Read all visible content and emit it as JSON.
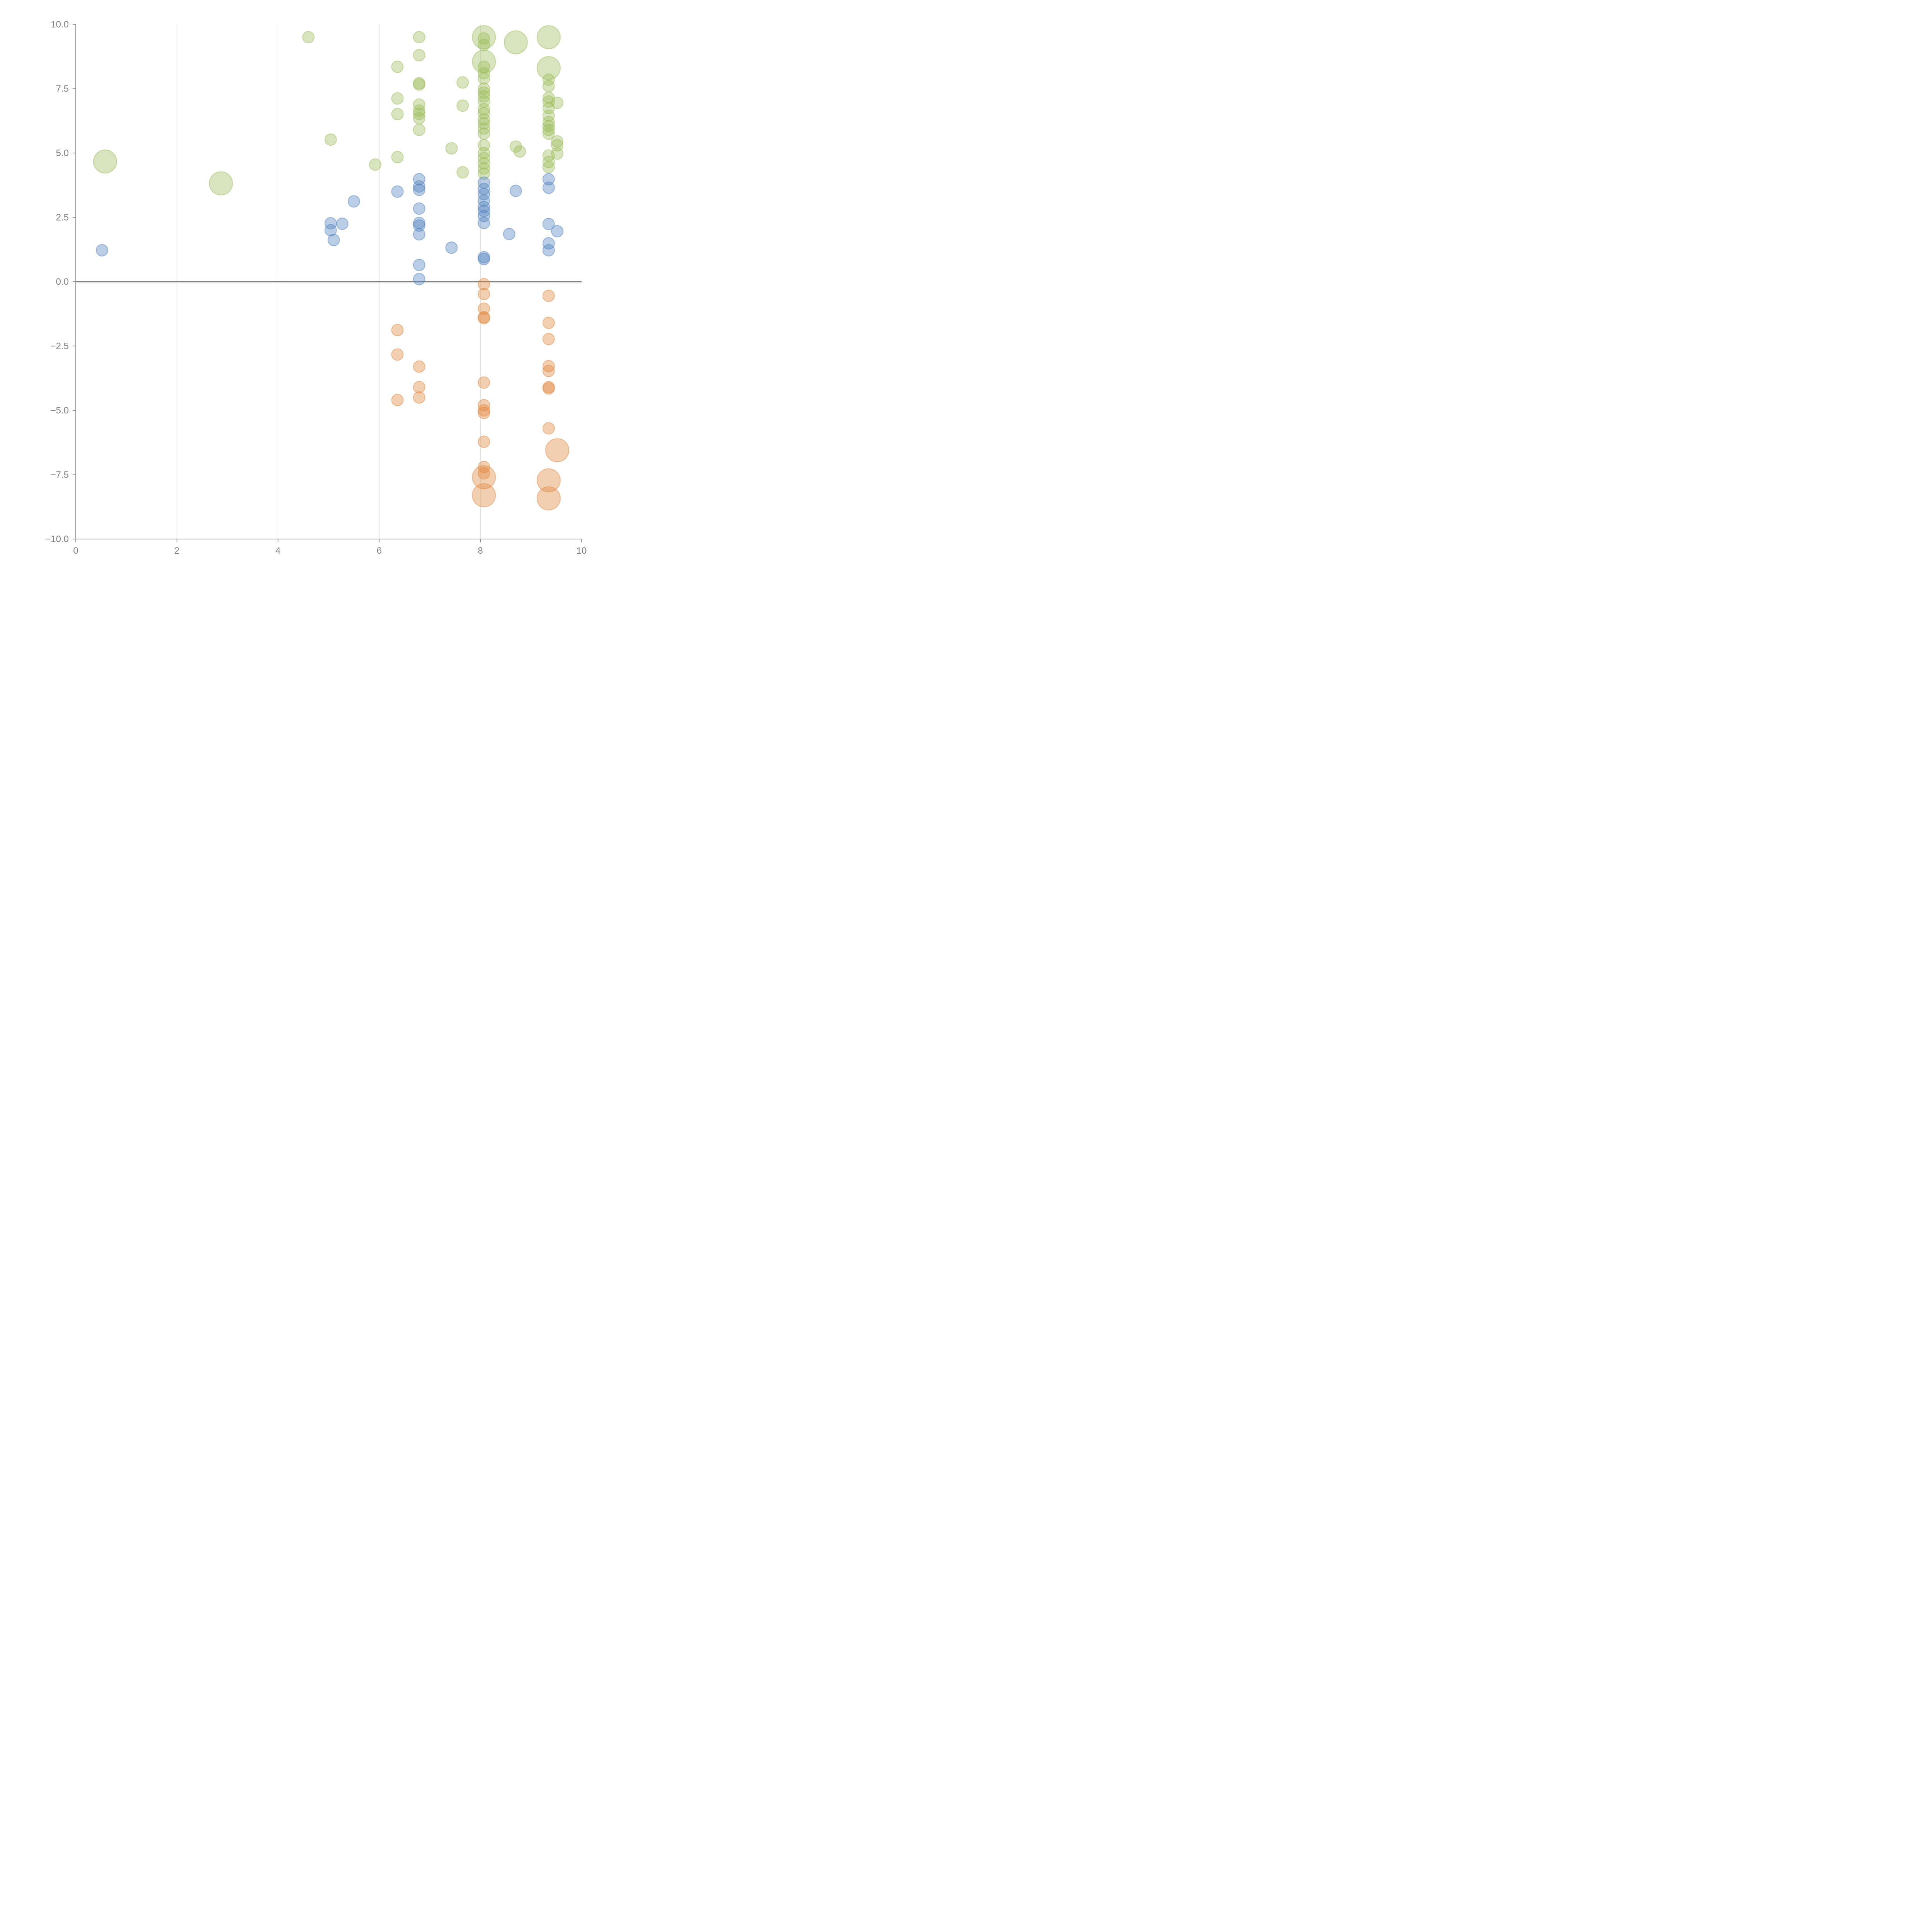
{
  "chart_data": {
    "type": "scatter",
    "title": "",
    "xlabel": "",
    "ylabel": "",
    "xlim": [
      0,
      10
    ],
    "ylim": [
      -10,
      10
    ],
    "xticks": [
      "0",
      "2",
      "4",
      "6",
      "8",
      "10"
    ],
    "yticks": [
      "10.0",
      "7.5",
      "5.0",
      "2.5",
      "0.0",
      "−2.5",
      "−5.0",
      "−7.5",
      "−10.0"
    ],
    "grid": "vertical",
    "zero_line": true,
    "colors": {
      "green": "#9bbb59",
      "blue": "#4f81bd",
      "orange": "#e0883f"
    },
    "series": [
      {
        "name": "green",
        "points": [
          [
            4.6,
            9.5,
            1
          ],
          [
            0.58,
            4.67,
            3
          ],
          [
            2.87,
            3.82,
            3
          ],
          [
            5.04,
            5.52,
            1
          ],
          [
            5.92,
            4.55,
            1
          ],
          [
            6.36,
            8.35,
            1
          ],
          [
            6.36,
            7.12,
            1
          ],
          [
            6.36,
            6.51,
            1
          ],
          [
            6.36,
            4.84,
            1
          ],
          [
            6.79,
            9.5,
            1
          ],
          [
            6.79,
            8.8,
            1
          ],
          [
            6.79,
            7.71,
            1
          ],
          [
            6.79,
            7.66,
            1
          ],
          [
            6.79,
            6.88,
            1
          ],
          [
            6.79,
            6.65,
            1
          ],
          [
            6.79,
            6.52,
            1
          ],
          [
            6.79,
            6.35,
            1
          ],
          [
            6.79,
            5.9,
            1
          ],
          [
            7.43,
            5.18,
            1
          ],
          [
            7.65,
            7.74,
            1
          ],
          [
            7.65,
            6.84,
            1
          ],
          [
            7.65,
            4.25,
            1
          ],
          [
            8.07,
            9.5,
            3
          ],
          [
            8.07,
            9.45,
            1
          ],
          [
            8.07,
            9.2,
            1
          ],
          [
            8.07,
            8.55,
            3
          ],
          [
            8.07,
            8.35,
            1
          ],
          [
            8.07,
            8.1,
            1
          ],
          [
            8.07,
            7.9,
            1
          ],
          [
            8.07,
            7.5,
            1
          ],
          [
            8.07,
            7.35,
            1
          ],
          [
            8.07,
            7.2,
            1
          ],
          [
            8.07,
            7.0,
            1
          ],
          [
            8.07,
            6.7,
            1
          ],
          [
            8.07,
            6.55,
            1
          ],
          [
            8.07,
            6.3,
            1
          ],
          [
            8.07,
            6.15,
            1
          ],
          [
            8.07,
            5.95,
            1
          ],
          [
            8.07,
            5.75,
            1
          ],
          [
            8.07,
            5.3,
            1
          ],
          [
            8.07,
            5.0,
            1
          ],
          [
            8.07,
            4.8,
            1
          ],
          [
            8.07,
            4.6,
            1
          ],
          [
            8.07,
            4.4,
            1
          ],
          [
            8.07,
            4.2,
            1
          ],
          [
            8.7,
            9.3,
            3
          ],
          [
            8.7,
            5.25,
            1
          ],
          [
            8.78,
            5.06,
            1
          ],
          [
            9.35,
            9.5,
            3
          ],
          [
            9.35,
            8.3,
            3
          ],
          [
            9.35,
            7.85,
            1
          ],
          [
            9.35,
            7.6,
            1
          ],
          [
            9.35,
            7.15,
            1
          ],
          [
            9.35,
            7.0,
            1
          ],
          [
            9.35,
            6.75,
            1
          ],
          [
            9.35,
            6.45,
            1
          ],
          [
            9.35,
            6.2,
            1
          ],
          [
            9.35,
            6.05,
            1
          ],
          [
            9.35,
            5.9,
            1
          ],
          [
            9.35,
            5.75,
            1
          ],
          [
            9.35,
            4.9,
            1
          ],
          [
            9.35,
            4.65,
            1
          ],
          [
            9.35,
            4.45,
            1
          ],
          [
            9.52,
            6.95,
            1
          ],
          [
            9.52,
            5.45,
            1
          ],
          [
            9.52,
            5.3,
            1
          ],
          [
            9.52,
            4.98,
            1
          ]
        ]
      },
      {
        "name": "blue",
        "points": [
          [
            0.52,
            1.22,
            1
          ],
          [
            5.04,
            2.27,
            1
          ],
          [
            5.04,
            2.0,
            1
          ],
          [
            5.1,
            1.62,
            1
          ],
          [
            5.27,
            2.25,
            1
          ],
          [
            5.5,
            3.12,
            1
          ],
          [
            6.36,
            3.5,
            1
          ],
          [
            6.79,
            3.98,
            1
          ],
          [
            6.79,
            3.7,
            1
          ],
          [
            6.79,
            3.57,
            1
          ],
          [
            6.79,
            2.84,
            1
          ],
          [
            6.79,
            2.28,
            1
          ],
          [
            6.79,
            2.18,
            1
          ],
          [
            6.79,
            1.84,
            1
          ],
          [
            6.79,
            0.65,
            1
          ],
          [
            6.79,
            0.1,
            1
          ],
          [
            7.43,
            1.32,
            1
          ],
          [
            8.07,
            3.85,
            1
          ],
          [
            8.07,
            3.6,
            1
          ],
          [
            8.07,
            3.4,
            1
          ],
          [
            8.07,
            3.15,
            1
          ],
          [
            8.07,
            2.9,
            1
          ],
          [
            8.07,
            2.75,
            1
          ],
          [
            8.07,
            2.55,
            1
          ],
          [
            8.07,
            2.28,
            1
          ],
          [
            8.07,
            0.95,
            1
          ],
          [
            8.07,
            0.88,
            1
          ],
          [
            8.57,
            1.85,
            1
          ],
          [
            8.7,
            3.53,
            1
          ],
          [
            9.35,
            3.98,
            1
          ],
          [
            9.35,
            3.65,
            1
          ],
          [
            9.35,
            2.24,
            1
          ],
          [
            9.35,
            1.49,
            1
          ],
          [
            9.35,
            1.22,
            1
          ],
          [
            9.52,
            1.96,
            1
          ]
        ]
      },
      {
        "name": "orange",
        "points": [
          [
            6.36,
            -1.88,
            1
          ],
          [
            6.36,
            -2.83,
            1
          ],
          [
            6.36,
            -4.6,
            1
          ],
          [
            6.79,
            -3.3,
            1
          ],
          [
            6.79,
            -4.1,
            1
          ],
          [
            6.79,
            -4.5,
            1
          ],
          [
            8.07,
            -0.1,
            1
          ],
          [
            8.07,
            -0.48,
            1
          ],
          [
            8.07,
            -1.05,
            1
          ],
          [
            8.07,
            -1.38,
            1
          ],
          [
            8.07,
            -1.42,
            1
          ],
          [
            8.07,
            -3.92,
            1
          ],
          [
            8.07,
            -4.8,
            1
          ],
          [
            8.07,
            -5.0,
            1
          ],
          [
            8.07,
            -5.1,
            1
          ],
          [
            8.07,
            -6.22,
            1
          ],
          [
            8.07,
            -7.2,
            1
          ],
          [
            8.07,
            -7.45,
            1
          ],
          [
            8.07,
            -7.6,
            3
          ],
          [
            8.07,
            -8.3,
            3
          ],
          [
            9.35,
            -0.55,
            1
          ],
          [
            9.35,
            -1.6,
            1
          ],
          [
            9.35,
            -2.23,
            1
          ],
          [
            9.35,
            -3.28,
            1
          ],
          [
            9.35,
            -3.47,
            1
          ],
          [
            9.35,
            -4.1,
            1
          ],
          [
            9.35,
            -4.15,
            1
          ],
          [
            9.35,
            -5.7,
            1
          ],
          [
            9.35,
            -7.72,
            3
          ],
          [
            9.35,
            -8.42,
            3
          ],
          [
            9.52,
            -6.55,
            3
          ]
        ]
      }
    ]
  }
}
